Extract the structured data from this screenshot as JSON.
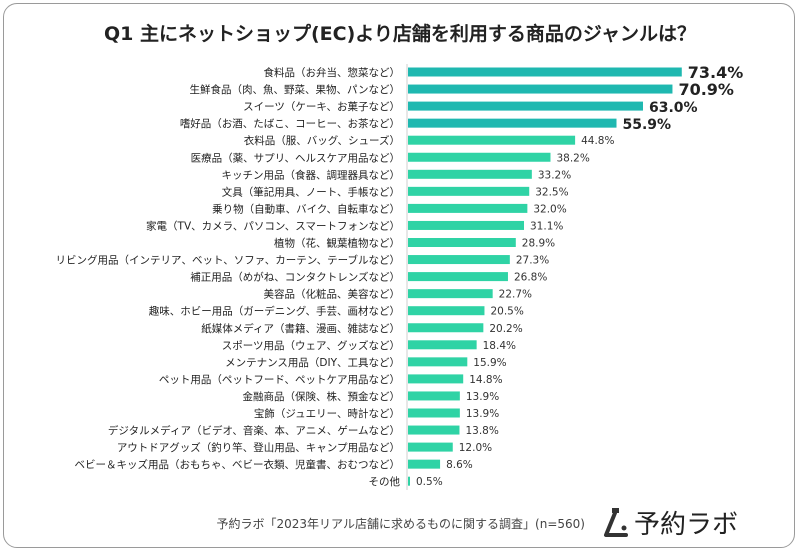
{
  "chart_data": {
    "type": "bar",
    "orientation": "horizontal",
    "title": "Q1  主にネットショップ(EC)より店舗を利用する商品のジャンルは？",
    "categories": [
      "食料品（お弁当、惣菜など）",
      "生鮮食品（肉、魚、野菜、果物、パンなど）",
      "スイーツ（ケーキ、お菓子など）",
      "嗜好品（お酒、たばこ、コーヒー、お茶など）",
      "衣料品（服、バッグ、シューズ）",
      "医療品（薬、サプリ、ヘルスケア用品など）",
      "キッチン用品（食器、調理器具など）",
      "文具（筆記用具、ノート、手帳など）",
      "乗り物（自動車、バイク、自転車など）",
      "家電（TV、カメラ、パソコン、スマートフォンなど）",
      "植物（花、観葉植物など）",
      "リビング用品（インテリア、ベット、ソファ、カーテン、テーブルなど）",
      "補正用品（めがね、コンタクトレンズなど）",
      "美容品（化粧品、美容など）",
      "趣味、ホビー用品（ガーデニング、手芸、画材など）",
      "紙媒体メディア（書籍、漫画、雑誌など）",
      "スポーツ用品（ウェア、グッズなど）",
      "メンテナンス用品（DIY、工具など）",
      "ペット用品（ペットフード、ペットケア用品など）",
      "金融商品（保険、株、預金など）",
      "宝飾（ジュエリー、時計など）",
      "デジタルメディア（ビデオ、音楽、本、アニメ、ゲームなど）",
      "アウトドアグッズ（釣り竿、登山用品、キャンプ用品など）",
      "ベビー＆キッズ用品（おもちゃ、ベビー衣類、児童書、おむつなど）",
      "その他"
    ],
    "values": [
      73.4,
      70.9,
      63.0,
      55.9,
      44.8,
      38.2,
      33.2,
      32.5,
      32.0,
      31.1,
      28.9,
      27.3,
      26.8,
      22.7,
      20.5,
      20.2,
      18.4,
      15.9,
      14.8,
      13.9,
      13.9,
      13.8,
      12.0,
      8.6,
      0.5
    ],
    "value_labels": [
      "73.4%",
      "70.9%",
      "63.0%",
      "55.9%",
      "44.8%",
      "38.2%",
      "33.2%",
      "32.5%",
      "32.0%",
      "31.1%",
      "28.9%",
      "27.3%",
      "26.8%",
      "22.7%",
      "20.5%",
      "20.2%",
      "18.4%",
      "15.9%",
      "14.8%",
      "13.9%",
      "13.9%",
      "13.8%",
      "12.0%",
      "8.6%",
      "0.5%"
    ],
    "unit": "%",
    "xlim": [
      0,
      100
    ],
    "grid": false,
    "legend": "none",
    "colors": {
      "top": "#1fb8b0",
      "rest": "#2fd3a5"
    },
    "top_highlight_count": 4
  },
  "footer": {
    "source": "予約ラボ「2023年リアル店舗に求めるものに関する調査」(n=560)",
    "logo_text": "予約ラボ"
  }
}
